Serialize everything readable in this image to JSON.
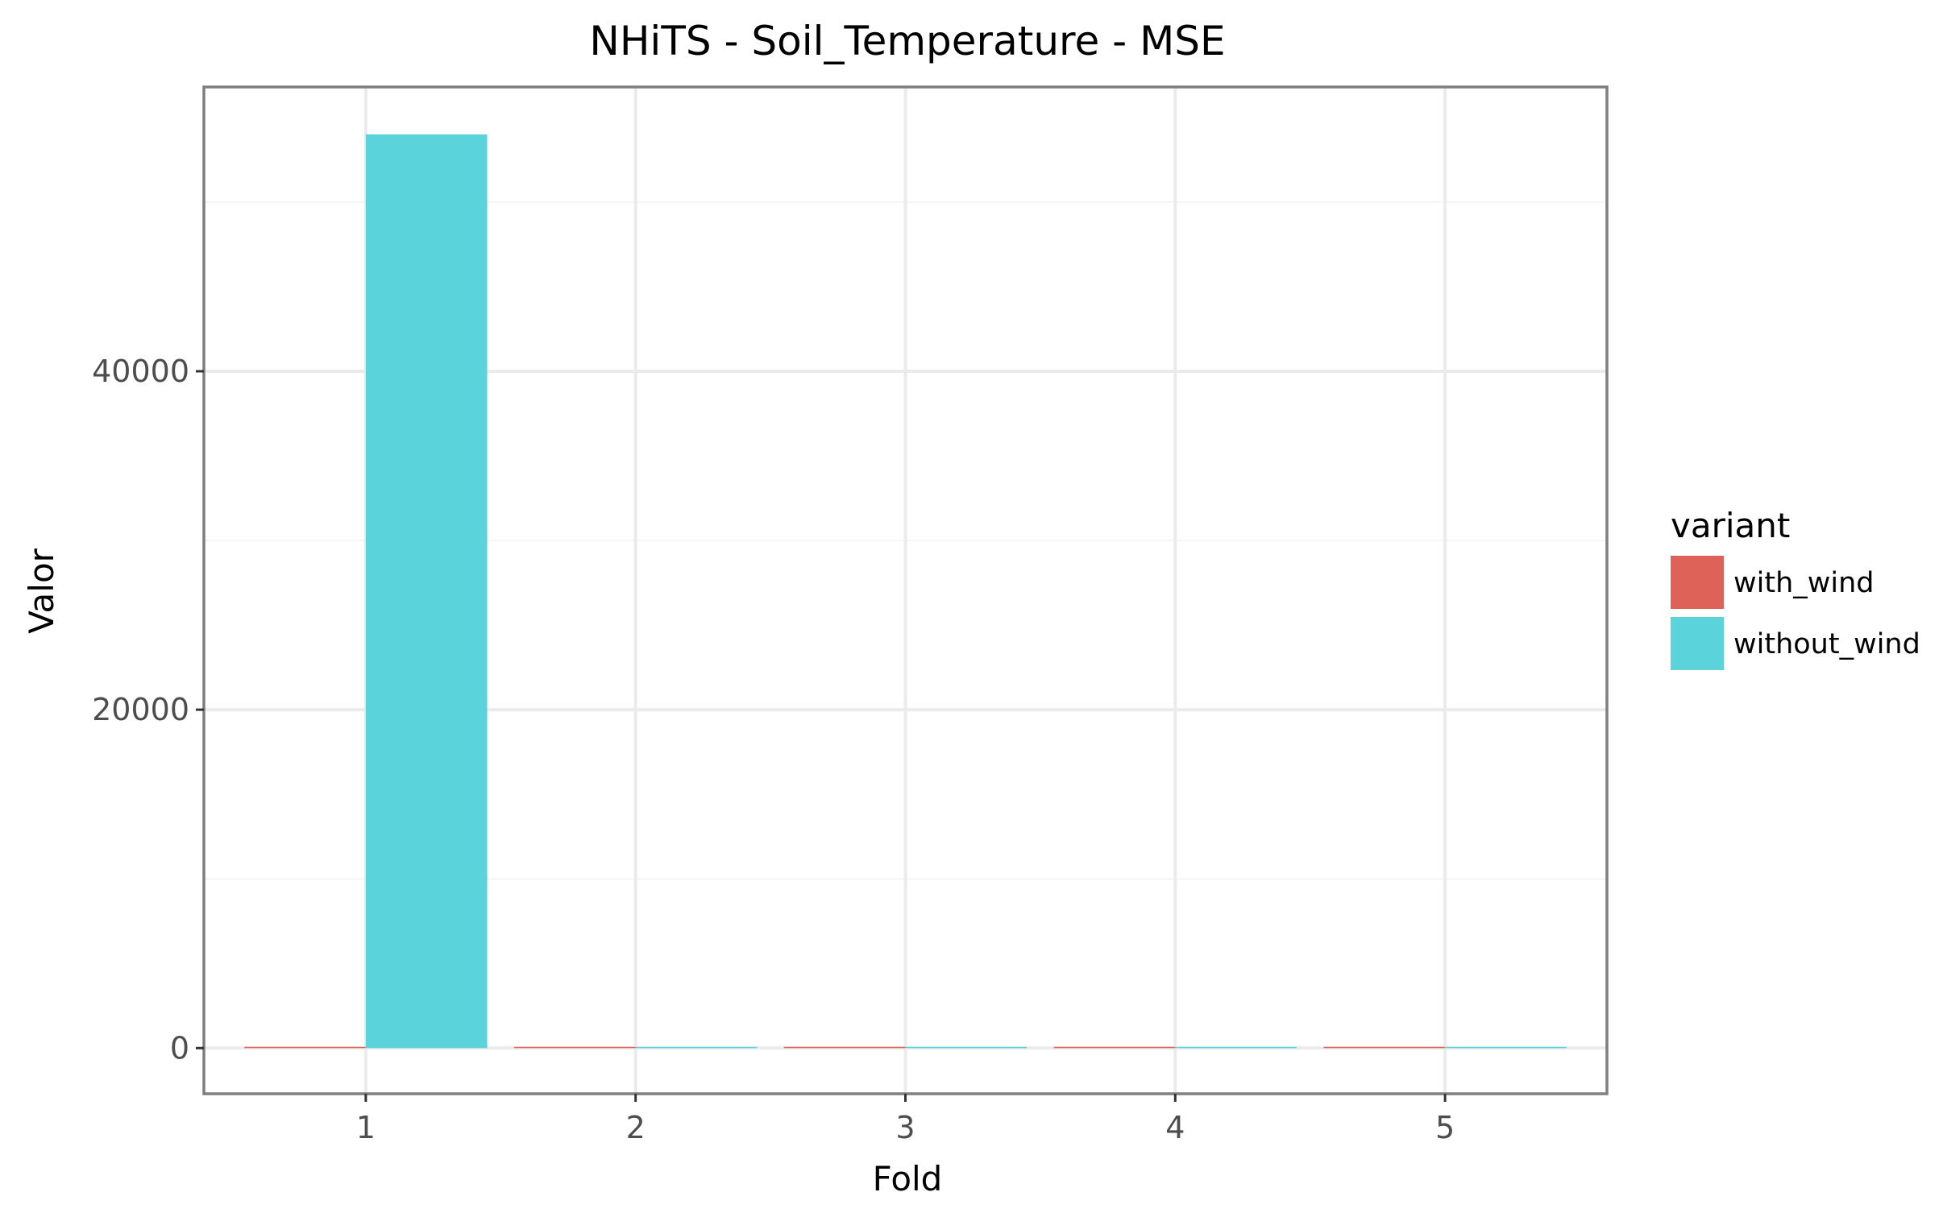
{
  "chart_data": {
    "type": "bar",
    "title": "NHiTS - Soil_Temperature - MSE",
    "xlabel": "Fold",
    "ylabel": "Valor",
    "categories": [
      "1",
      "2",
      "3",
      "4",
      "5"
    ],
    "series": [
      {
        "name": "with_wind",
        "color": "#df6259",
        "values": [
          60,
          8,
          25,
          20,
          15
        ]
      },
      {
        "name": "without_wind",
        "color": "#5ad3db",
        "values": [
          54000,
          5,
          15,
          12,
          3
        ]
      }
    ],
    "ylim": [
      -2700,
      56800
    ],
    "y_ticks": [
      0,
      20000,
      40000
    ],
    "y_tick_labels": [
      "0",
      "20000",
      "40000"
    ],
    "legend": {
      "title": "variant",
      "position": "right"
    },
    "grid": true
  }
}
